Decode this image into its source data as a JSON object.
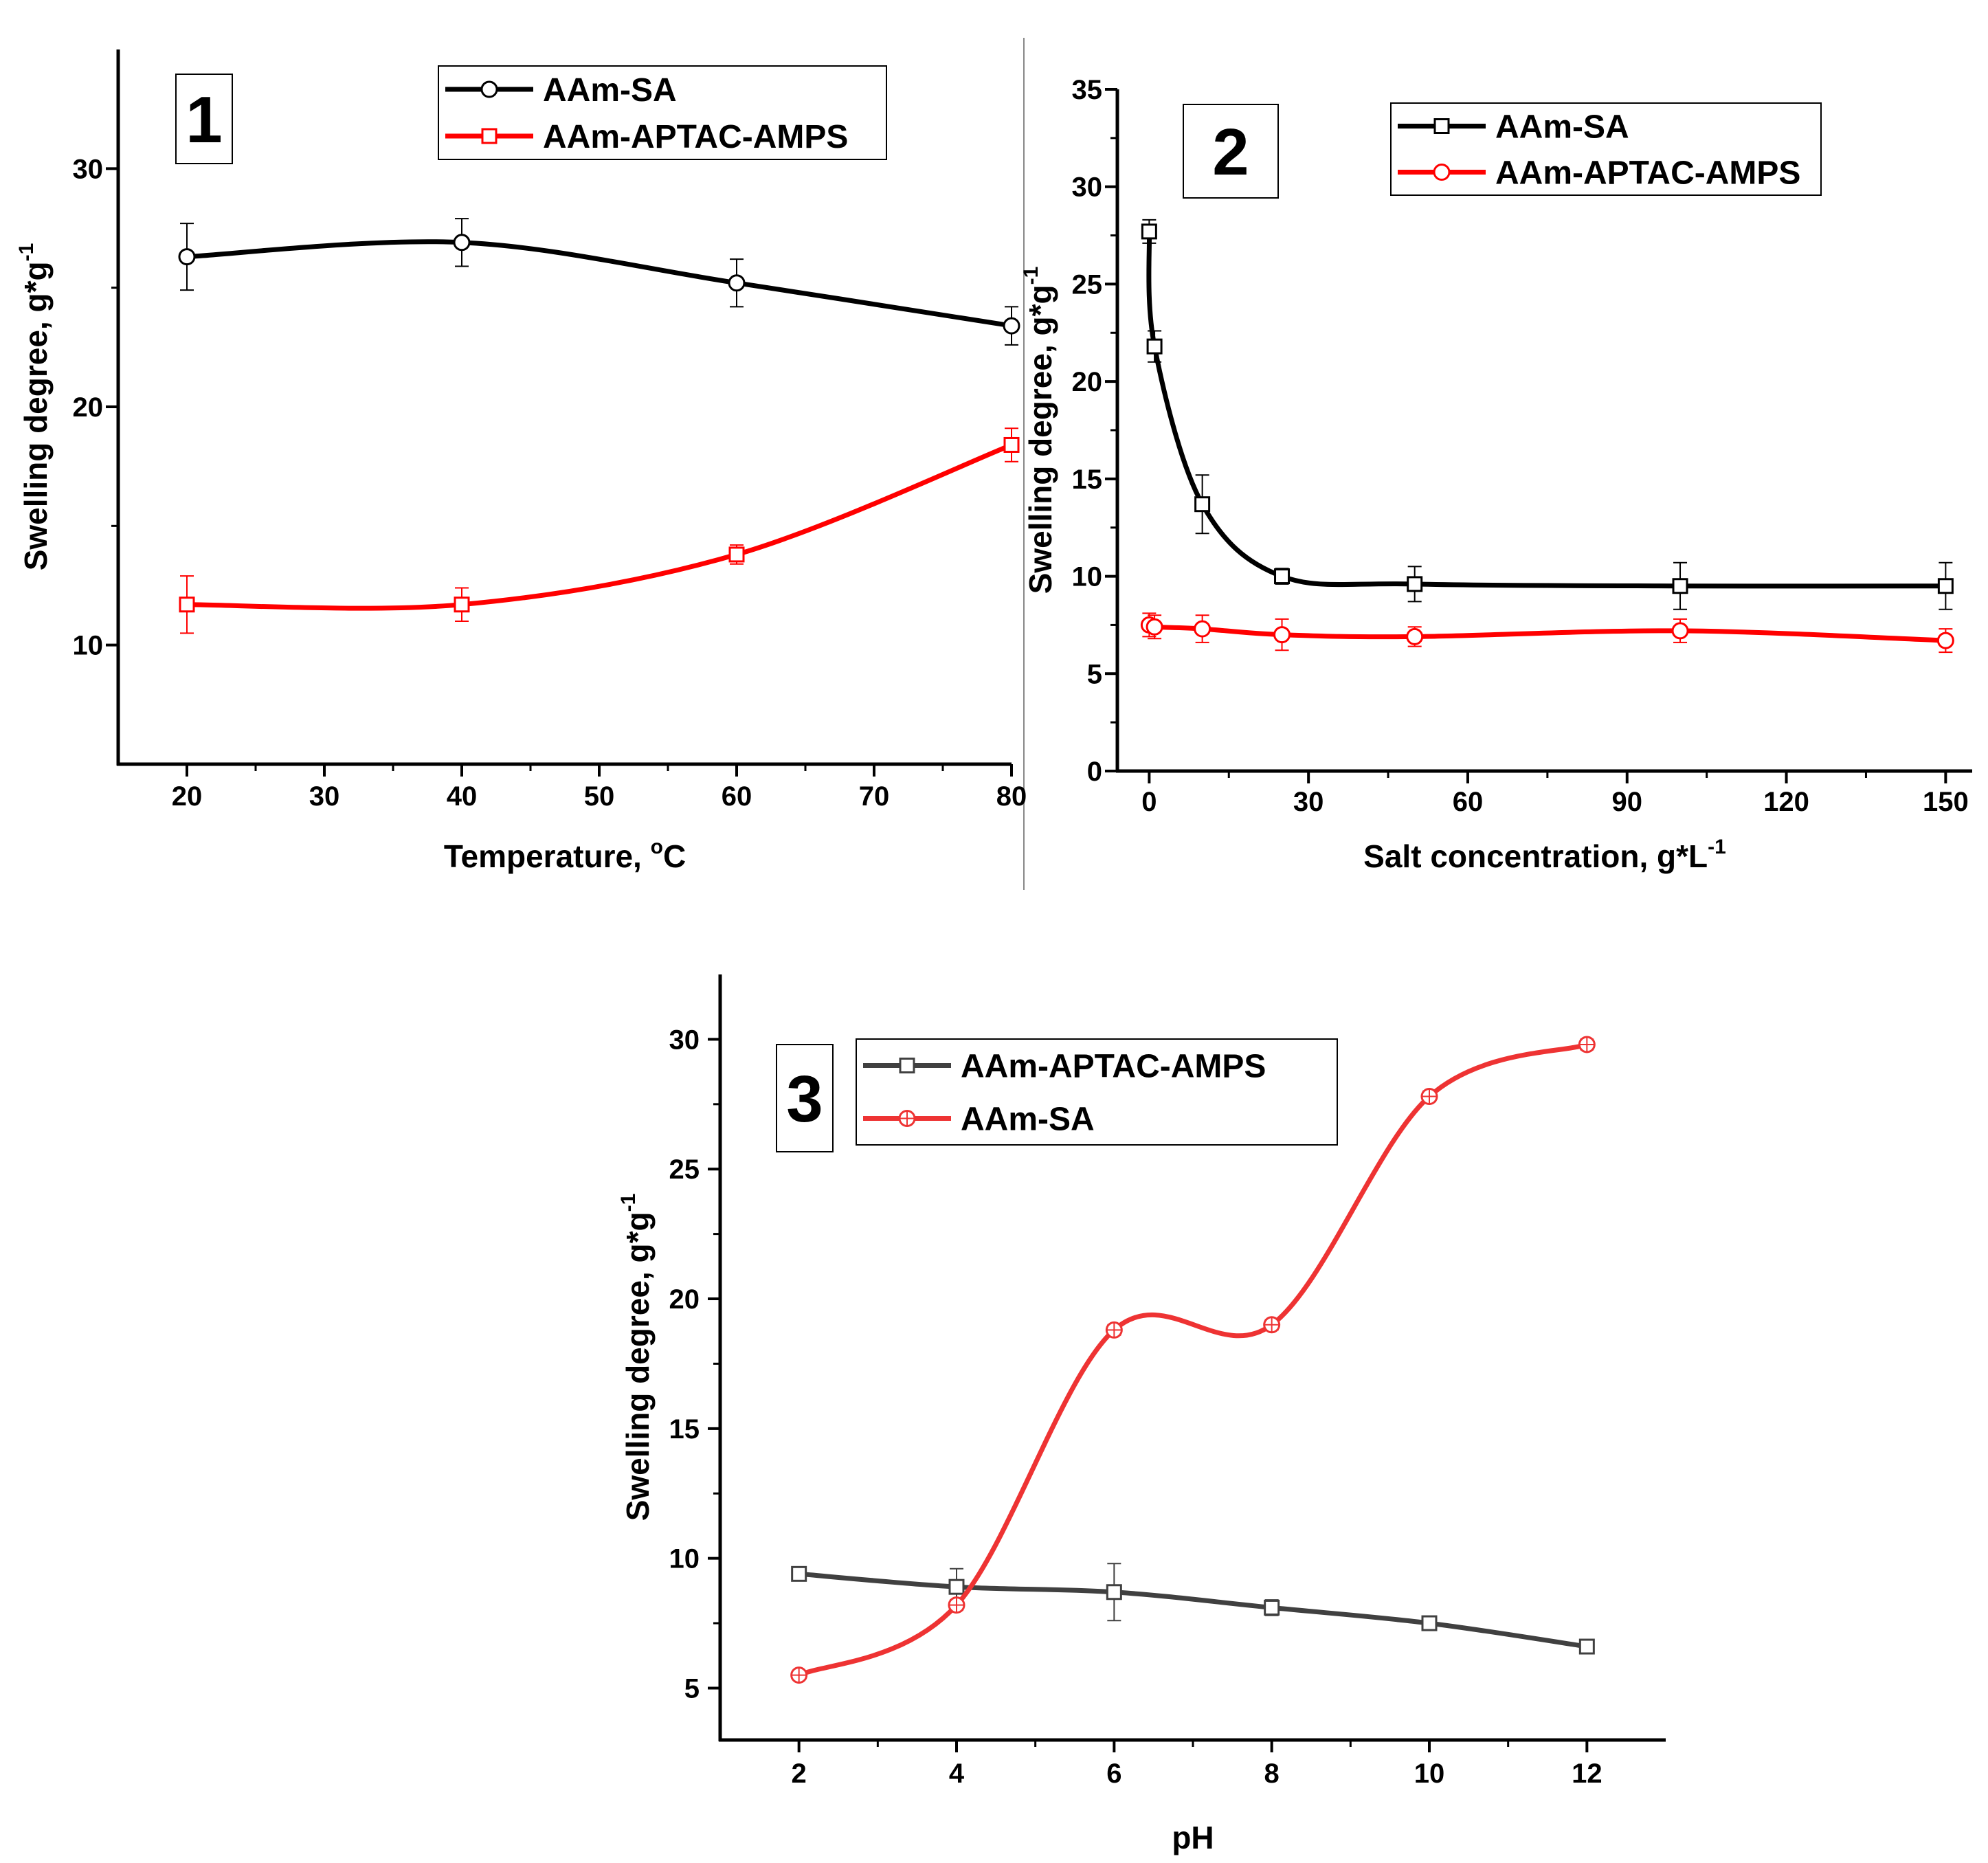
{
  "chart_data": [
    {
      "type": "line",
      "panel_label": "1",
      "xlabel": "Temperature, ",
      "xlabel_sup": "o",
      "xlabel_suffix": "C",
      "ylabel": "Swelling degree, g*g",
      "ylabel_sup": "-1",
      "xlim": [
        15,
        80
      ],
      "ylim": [
        5,
        35
      ],
      "xticks": [
        "20",
        "30",
        "40",
        "50",
        "60",
        "70",
        "80"
      ],
      "yticks": [
        "10",
        "20",
        "30"
      ],
      "legend_position": "top-right",
      "series": [
        {
          "name": "AAm-SA",
          "color": "#000000",
          "marker": "circle",
          "x": [
            20,
            40,
            60,
            80
          ],
          "y": [
            26.3,
            26.9,
            25.2,
            23.4
          ],
          "err": [
            1.4,
            1.0,
            1.0,
            0.8
          ]
        },
        {
          "name": "AAm-APTAC-AMPS",
          "color": "#ff0000",
          "marker": "square",
          "x": [
            20,
            40,
            60,
            80
          ],
          "y": [
            11.7,
            11.7,
            13.8,
            18.4
          ],
          "err": [
            1.2,
            0.7,
            0.4,
            0.7
          ]
        }
      ]
    },
    {
      "type": "line",
      "panel_label": "2",
      "xlabel": "Salt concentration, g*L",
      "xlabel_sup": "-1",
      "xlabel_suffix": "",
      "ylabel": "Swelling degree, g*g",
      "ylabel_sup": "-1",
      "xlim": [
        -6,
        155
      ],
      "ylim": [
        0,
        35
      ],
      "xticks": [
        "0",
        "30",
        "60",
        "90",
        "120",
        "150"
      ],
      "yticks": [
        "0",
        "5",
        "10",
        "15",
        "20",
        "25",
        "30",
        "35"
      ],
      "legend_position": "top-right",
      "series": [
        {
          "name": "AAm-SA",
          "color": "#000000",
          "marker": "square",
          "x": [
            0,
            1,
            10,
            25,
            50,
            100,
            150
          ],
          "y": [
            27.7,
            21.8,
            13.7,
            10.0,
            9.6,
            9.5,
            9.5
          ],
          "err": [
            0.6,
            0.8,
            1.5,
            0.4,
            0.9,
            1.2,
            1.2
          ]
        },
        {
          "name": "AAm-APTAC-AMPS",
          "color": "#ff0000",
          "marker": "circle",
          "x": [
            0,
            1,
            10,
            25,
            50,
            100,
            150
          ],
          "y": [
            7.5,
            7.4,
            7.3,
            7.0,
            6.9,
            7.2,
            6.7
          ],
          "err": [
            0.6,
            0.6,
            0.7,
            0.8,
            0.5,
            0.6,
            0.6
          ]
        }
      ]
    },
    {
      "type": "line",
      "panel_label": "3",
      "xlabel": "pH",
      "xlabel_sup": "",
      "xlabel_suffix": "",
      "ylabel": "Swelling degree, g*g",
      "ylabel_sup": "-1",
      "xlim": [
        1,
        13
      ],
      "ylim": [
        3,
        32.5
      ],
      "xticks": [
        "2",
        "4",
        "6",
        "8",
        "10",
        "12"
      ],
      "yticks": [
        "5",
        "10",
        "15",
        "20",
        "25",
        "30"
      ],
      "legend_position": "top-right",
      "series": [
        {
          "name": "AAm-APTAC-AMPS",
          "color": "#404040",
          "marker": "square",
          "x": [
            2,
            4,
            6,
            8,
            10,
            12
          ],
          "y": [
            9.4,
            8.9,
            8.7,
            8.1,
            7.5,
            6.6
          ],
          "err": [
            0.2,
            0.7,
            1.1,
            0.3,
            0.2,
            0.2
          ]
        },
        {
          "name": "AAm-SA",
          "color": "#ee3333",
          "marker": "circle-plus",
          "x": [
            2,
            4,
            6,
            8,
            10,
            12
          ],
          "y": [
            5.5,
            8.2,
            18.8,
            19.0,
            27.8,
            29.8
          ],
          "err": [
            0.1,
            0.2,
            0.2,
            0.2,
            0.2,
            0.2
          ]
        }
      ]
    }
  ]
}
